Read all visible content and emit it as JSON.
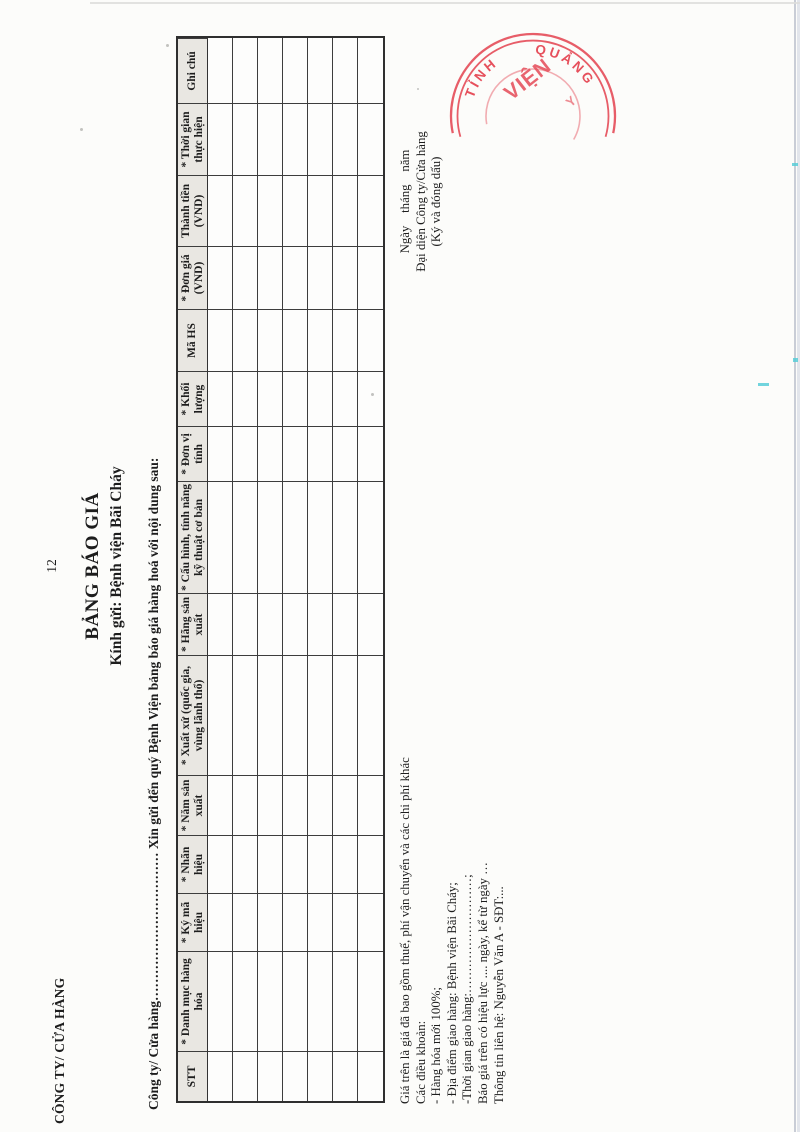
{
  "header": {
    "corner_label": "CÔNG TY/ CỬA HÀNG",
    "page_number": "12",
    "title": "BẢNG BÁO GIÁ",
    "recipient": "Kính gửi: Bệnh viện Bãi Cháy",
    "intro_line": "Công ty/ Cửa hàng…………………………… Xin gửi đến quý Bệnh Viện bảng báo giá hàng hoá với nội dung sau:"
  },
  "table": {
    "columns": [
      "STT",
      "* Danh mục hàng hóa",
      "* Ký mã hiệu",
      "* Nhãn hiệu",
      "* Năm sản xuất",
      "* Xuất xứ (quốc gia, vùng lãnh thổ)",
      "* Hãng sản xuất",
      "* Cấu hình, tính năng kỹ thuật cơ bản",
      "* Đơn vị tính",
      "* Khối lượng",
      "Mã HS",
      "* Đơn giá (VND)",
      "Thành tiền (VND)",
      "* Thời gian thực hiện",
      "Ghi chú"
    ],
    "empty_row_count": 7
  },
  "notes": [
    "Giá trên là giá đã bao gồm thuế, phí vận chuyển và các chi phí khác",
    "Các điều khoản:",
    "- Hàng hóa mới 100%;",
    "- Địa điểm giao hàng: Bệnh viện Bãi Cháy;",
    "-Thời gian giao hàng:………………………;",
    "Báo giá trên có hiệu lực .... ngày, kể từ ngày …",
    "Thông tin liên hệ: Nguyễn Văn A - SĐT:..."
  ],
  "signature": {
    "date_line": "Ngày    tháng    năm",
    "representative": "Đại diện Công ty/Cửa hàng",
    "sign_note": "(Ký và đóng dấu)"
  },
  "stamp": {
    "arc_text_left": "TỈNH",
    "arc_text_right": "QUẢNG",
    "center_text": "VIỆN",
    "partial_mark": "Y"
  },
  "colors": {
    "paper": "#fcfcfa",
    "ink": "#1d1d1d",
    "table_line": "#3d3d3d",
    "header_fill": "#e9e7e2",
    "stamp_red": "#e6505c",
    "scan_edge": "#c9cdd6",
    "scan_tick_cyan": "#58ccd7"
  }
}
